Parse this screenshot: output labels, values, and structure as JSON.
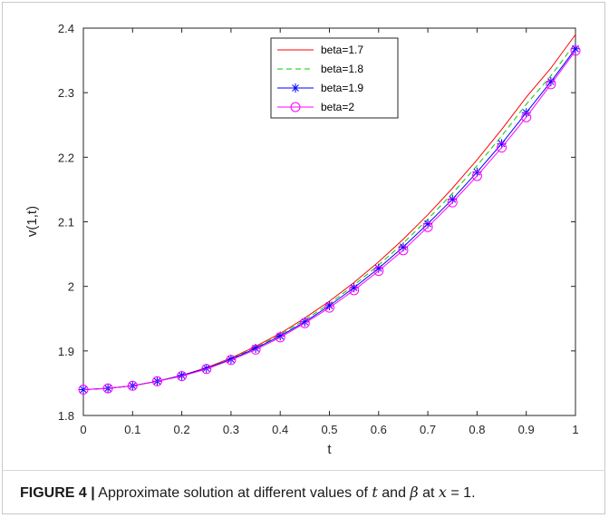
{
  "chart_data": {
    "type": "line",
    "xlabel": "t",
    "ylabel": "v(1,t)",
    "xlim": [
      0,
      1
    ],
    "ylim": [
      1.8,
      2.4
    ],
    "xticks": [
      "0",
      "0.1",
      "0.2",
      "0.3",
      "0.4",
      "0.5",
      "0.6",
      "0.7",
      "0.8",
      "0.9",
      "1"
    ],
    "yticks": [
      "1.8",
      "1.9",
      "2",
      "2.1",
      "2.2",
      "2.3",
      "2.4"
    ],
    "x": [
      0,
      0.05,
      0.1,
      0.15,
      0.2,
      0.25,
      0.3,
      0.35,
      0.4,
      0.45,
      0.5,
      0.55,
      0.6,
      0.65,
      0.7,
      0.75,
      0.8,
      0.85,
      0.9,
      0.95,
      1
    ],
    "legend_position": "top-center",
    "series": [
      {
        "name": "beta=1.7",
        "color": "#ff0000",
        "style": "solid",
        "marker": "none",
        "values": [
          1.84,
          1.842,
          1.846,
          1.853,
          1.862,
          1.874,
          1.889,
          1.907,
          1.927,
          1.951,
          1.977,
          2.006,
          2.038,
          2.073,
          2.111,
          2.152,
          2.196,
          2.243,
          2.293,
          2.338,
          2.39
        ]
      },
      {
        "name": "beta=1.8",
        "color": "#00cc00",
        "style": "dashed",
        "marker": "none",
        "values": [
          1.84,
          1.842,
          1.846,
          1.853,
          1.862,
          1.873,
          1.888,
          1.905,
          1.925,
          1.948,
          1.973,
          2.002,
          2.033,
          2.067,
          2.104,
          2.144,
          2.187,
          2.233,
          2.282,
          2.326,
          2.377
        ]
      },
      {
        "name": "beta=1.9",
        "color": "#0000ff",
        "style": "solid",
        "marker": "star",
        "values": [
          1.84,
          1.842,
          1.846,
          1.853,
          1.862,
          1.873,
          1.887,
          1.904,
          1.923,
          1.945,
          1.97,
          1.998,
          2.028,
          2.061,
          2.097,
          2.135,
          2.177,
          2.221,
          2.269,
          2.317,
          2.368
        ]
      },
      {
        "name": "beta=2",
        "color": "#ff00ff",
        "style": "solid",
        "marker": "circle",
        "values": [
          1.84,
          1.842,
          1.846,
          1.853,
          1.861,
          1.872,
          1.886,
          1.902,
          1.921,
          1.943,
          1.967,
          1.994,
          2.024,
          2.056,
          2.092,
          2.13,
          2.171,
          2.215,
          2.262,
          2.313,
          2.365
        ]
      }
    ]
  },
  "caption": {
    "label": "FIGURE 4 |",
    "text_1": "Approximate solution at different values of ",
    "var_t": "t",
    "text_2": " and ",
    "var_beta": "β",
    "text_3": " at ",
    "var_x": "x",
    "text_4": " = 1."
  }
}
